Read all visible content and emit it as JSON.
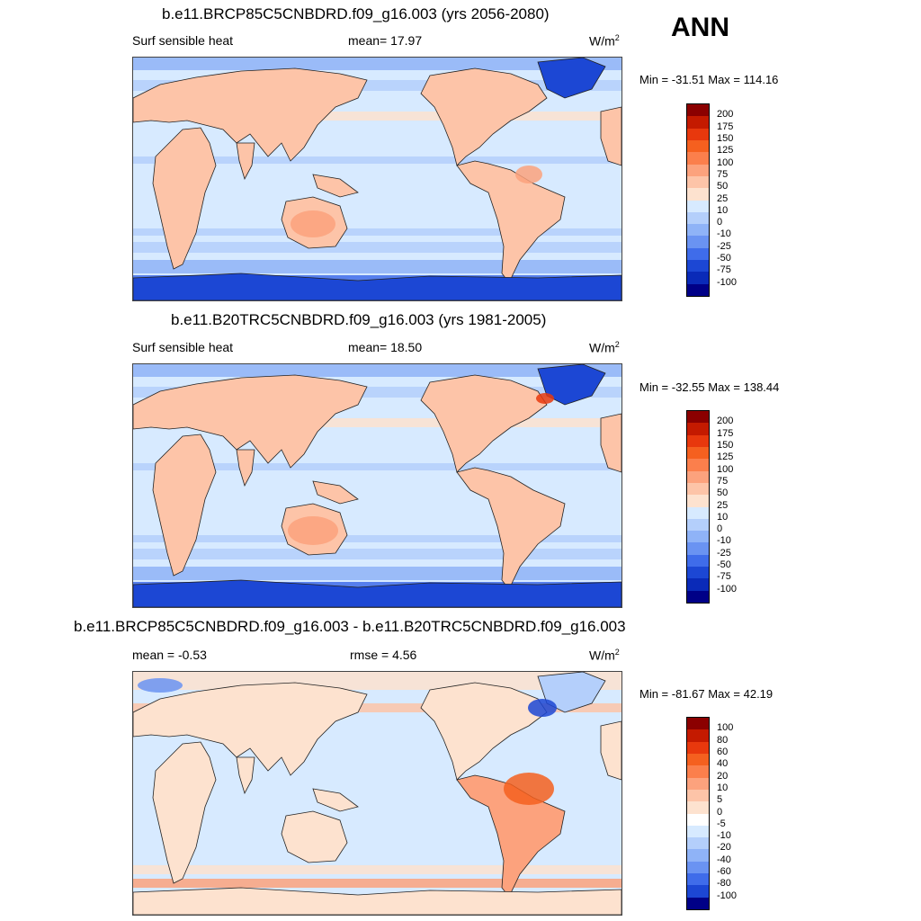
{
  "season": "ANN",
  "panels": [
    {
      "title": "b.e11.BRCP85C5CNBDRD.f09_g16.003 (yrs 2056-2080)",
      "left_label": "Surf sensible heat",
      "mid_label": "mean=  17.97",
      "units": "W/m",
      "units_sup": "2",
      "minmax": "Min = -31.51 Max = 114.16",
      "levels": [
        "200",
        "175",
        "150",
        "125",
        "100",
        "75",
        "50",
        "25",
        "10",
        "0",
        "-10",
        "-25",
        "-50",
        "-75",
        "-100"
      ],
      "colors": [
        "#8b0000",
        "#c41a00",
        "#e8380d",
        "#f5601f",
        "#fb7f4c",
        "#fca27d",
        "#fdc4a8",
        "#fde2cf",
        "#d7eaff",
        "#b4cffb",
        "#8fb3f7",
        "#6a93f2",
        "#3f6cea",
        "#1c47d4",
        "#0a2ab8",
        "#000087"
      ],
      "variant": "a"
    },
    {
      "title": "b.e11.B20TRC5CNBDRD.f09_g16.003 (yrs 1981-2005)",
      "left_label": "Surf sensible heat",
      "mid_label": "mean=  18.50",
      "units": "W/m",
      "units_sup": "2",
      "minmax": "Min = -32.55 Max = 138.44",
      "levels": [
        "200",
        "175",
        "150",
        "125",
        "100",
        "75",
        "50",
        "25",
        "10",
        "0",
        "-10",
        "-25",
        "-50",
        "-75",
        "-100"
      ],
      "colors": [
        "#8b0000",
        "#c41a00",
        "#e8380d",
        "#f5601f",
        "#fb7f4c",
        "#fca27d",
        "#fdc4a8",
        "#fde2cf",
        "#d7eaff",
        "#b4cffb",
        "#8fb3f7",
        "#6a93f2",
        "#3f6cea",
        "#1c47d4",
        "#0a2ab8",
        "#000087"
      ],
      "variant": "b"
    },
    {
      "title": "b.e11.BRCP85C5CNBDRD.f09_g16.003 - b.e11.B20TRC5CNBDRD.f09_g16.003",
      "left_label": "mean =  -0.53",
      "mid_label": "rmse =   4.56",
      "units": "W/m",
      "units_sup": "2",
      "minmax": "Min = -81.67 Max =  42.19",
      "levels": [
        "100",
        "80",
        "60",
        "40",
        "20",
        "10",
        "5",
        "0",
        "-5",
        "-10",
        "-20",
        "-40",
        "-60",
        "-80",
        "-100"
      ],
      "colors": [
        "#8b0000",
        "#c41a00",
        "#e8380d",
        "#f5601f",
        "#fb7f4c",
        "#fca27d",
        "#fdc4a8",
        "#fde2cf",
        "#ffffff",
        "#d7eaff",
        "#b4cffb",
        "#8fb3f7",
        "#6a93f2",
        "#3f6cea",
        "#1c47d4",
        "#000087"
      ],
      "variant": "c"
    }
  ]
}
